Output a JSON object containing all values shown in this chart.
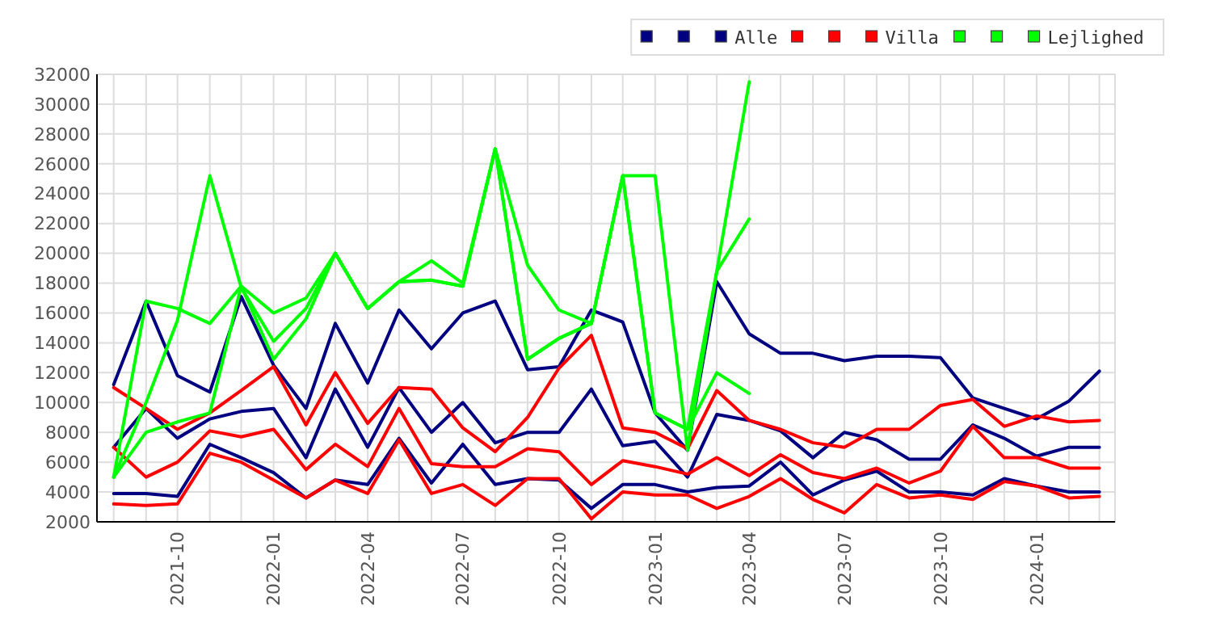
{
  "chart_data": {
    "type": "line",
    "x": [
      "2021-08",
      "2021-09",
      "2021-10",
      "2021-11",
      "2021-12",
      "2022-01",
      "2022-02",
      "2022-03",
      "2022-04",
      "2022-05",
      "2022-06",
      "2022-07",
      "2022-08",
      "2022-09",
      "2022-10",
      "2022-11",
      "2022-12",
      "2023-01",
      "2023-02",
      "2023-03",
      "2023-04",
      "2023-05",
      "2023-06",
      "2023-07",
      "2023-08",
      "2023-09",
      "2023-10",
      "2023-11",
      "2023-12",
      "2024-01",
      "2024-02",
      "2024-03"
    ],
    "series": [
      {
        "color": "#000080",
        "values": [
          3900,
          3900,
          3700,
          7200,
          6300,
          5300,
          3600,
          4800,
          4500,
          7600,
          4600,
          7200,
          4500,
          4900,
          4800,
          2900,
          4500,
          4500,
          4000,
          4300,
          4400,
          6000,
          3800,
          4800,
          5400,
          4000,
          4000,
          3800,
          4900,
          4400,
          4000,
          4000
        ]
      },
      {
        "color": "#000080",
        "values": [
          7000,
          9600,
          7600,
          8900,
          9400,
          9600,
          6300,
          10900,
          7000,
          11000,
          8000,
          10000,
          7300,
          8000,
          8000,
          10900,
          7100,
          7400,
          5000,
          9200,
          8800,
          8100,
          6300,
          8000,
          7500,
          6200,
          6200,
          8500,
          7600,
          6400,
          7000,
          7000
        ]
      },
      {
        "name": "Alle",
        "color": "#000080",
        "values": [
          11200,
          16800,
          11800,
          10700,
          17100,
          12500,
          9600,
          15300,
          11300,
          16200,
          13600,
          16000,
          16800,
          12200,
          12400,
          16200,
          15400,
          9300,
          6800,
          18100,
          14600,
          13300,
          13300,
          12800,
          13100,
          13100,
          13000,
          10300,
          9600,
          8900,
          10100,
          12100
        ]
      },
      {
        "color": "#ff0000",
        "values": [
          3200,
          3100,
          3200,
          6600,
          6000,
          4800,
          3600,
          4800,
          3900,
          7500,
          3900,
          4500,
          3100,
          4900,
          4900,
          2200,
          4000,
          3800,
          3800,
          2900,
          3700,
          4900,
          3500,
          2600,
          4500,
          3600,
          3800,
          3500,
          4700,
          4400,
          3600,
          3700
        ]
      },
      {
        "color": "#ff0000",
        "values": [
          7000,
          5000,
          6000,
          8100,
          7700,
          8200,
          5500,
          7200,
          5700,
          9600,
          5900,
          5700,
          5700,
          6900,
          6700,
          4500,
          6100,
          5700,
          5200,
          6300,
          5100,
          6500,
          5300,
          4900,
          5600,
          4600,
          5400,
          8400,
          6300,
          6300,
          5600,
          5600
        ]
      },
      {
        "name": "Villa",
        "color": "#ff0000",
        "values": [
          11000,
          9600,
          8200,
          9300,
          10800,
          12400,
          8500,
          12000,
          8600,
          11000,
          10900,
          8300,
          6700,
          9000,
          12300,
          14500,
          8300,
          8000,
          6900,
          10800,
          8800,
          8200,
          7300,
          7000,
          8200,
          8200,
          9800,
          10200,
          8400,
          9100,
          8700,
          8800
        ]
      },
      {
        "color": "#00ff00",
        "values": [
          5000,
          8000,
          8700,
          9300,
          17800,
          12900,
          15600,
          20000,
          16300,
          18100,
          18200,
          17800,
          27000,
          12900,
          14300,
          15300,
          25200,
          9300,
          8200,
          18800,
          22300,
          null,
          null,
          null,
          null,
          null,
          null,
          null,
          null,
          null,
          null,
          null
        ]
      },
      {
        "color": "#00ff00",
        "values": [
          5000,
          10000,
          15500,
          25200,
          17700,
          14100,
          16300,
          20000,
          16300,
          18100,
          19500,
          18000,
          27000,
          12900,
          14300,
          15300,
          25200,
          25200,
          6800,
          18800,
          31500,
          null,
          null,
          null,
          null,
          null,
          null,
          null,
          null,
          null,
          null,
          null
        ]
      },
      {
        "name": "Lejlighed",
        "color": "#00ff00",
        "values": [
          5000,
          16800,
          16300,
          15300,
          17800,
          16000,
          17000,
          20000,
          16300,
          18100,
          18200,
          17800,
          27000,
          19200,
          16200,
          15300,
          25200,
          9300,
          8200,
          12000,
          10600,
          null,
          null,
          null,
          null,
          null,
          null,
          null,
          null,
          null,
          null,
          null
        ]
      }
    ],
    "xlim": [
      "2021-07-16",
      "2024-03-16"
    ],
    "xticks": [
      {
        "value": "2021-08",
        "label": null
      },
      {
        "value": "2021-09",
        "label": null
      },
      {
        "value": "2021-10",
        "label": "2021-10"
      },
      {
        "value": "2021-11",
        "label": null
      },
      {
        "value": "2021-12",
        "label": null
      },
      {
        "value": "2022-01",
        "label": "2022-01"
      },
      {
        "value": "2022-02",
        "label": null
      },
      {
        "value": "2022-03",
        "label": null
      },
      {
        "value": "2022-04",
        "label": "2022-04"
      },
      {
        "value": "2022-05",
        "label": null
      },
      {
        "value": "2022-06",
        "label": null
      },
      {
        "value": "2022-07",
        "label": "2022-07"
      },
      {
        "value": "2022-08",
        "label": null
      },
      {
        "value": "2022-09",
        "label": null
      },
      {
        "value": "2022-10",
        "label": "2022-10"
      },
      {
        "value": "2022-11",
        "label": null
      },
      {
        "value": "2022-12",
        "label": null
      },
      {
        "value": "2023-01",
        "label": "2023-01"
      },
      {
        "value": "2023-02",
        "label": null
      },
      {
        "value": "2023-03",
        "label": null
      },
      {
        "value": "2023-04",
        "label": "2023-04"
      },
      {
        "value": "2023-05",
        "label": null
      },
      {
        "value": "2023-06",
        "label": null
      },
      {
        "value": "2023-07",
        "label": "2023-07"
      },
      {
        "value": "2023-08",
        "label": null
      },
      {
        "value": "2023-09",
        "label": null
      },
      {
        "value": "2023-10",
        "label": "2023-10"
      },
      {
        "value": "2023-11",
        "label": null
      },
      {
        "value": "2023-12",
        "label": null
      },
      {
        "value": "2024-01",
        "label": "2024-01"
      },
      {
        "value": "2024-02",
        "label": null
      },
      {
        "value": "2024-03",
        "label": null
      }
    ],
    "ylim": [
      2000,
      32000
    ],
    "yticks": [
      2000,
      4000,
      6000,
      8000,
      10000,
      12000,
      14000,
      16000,
      18000,
      20000,
      22000,
      24000,
      26000,
      28000,
      30000,
      32000
    ],
    "grid": true,
    "legend": "top right",
    "marker": "none",
    "line_style": "solid"
  }
}
